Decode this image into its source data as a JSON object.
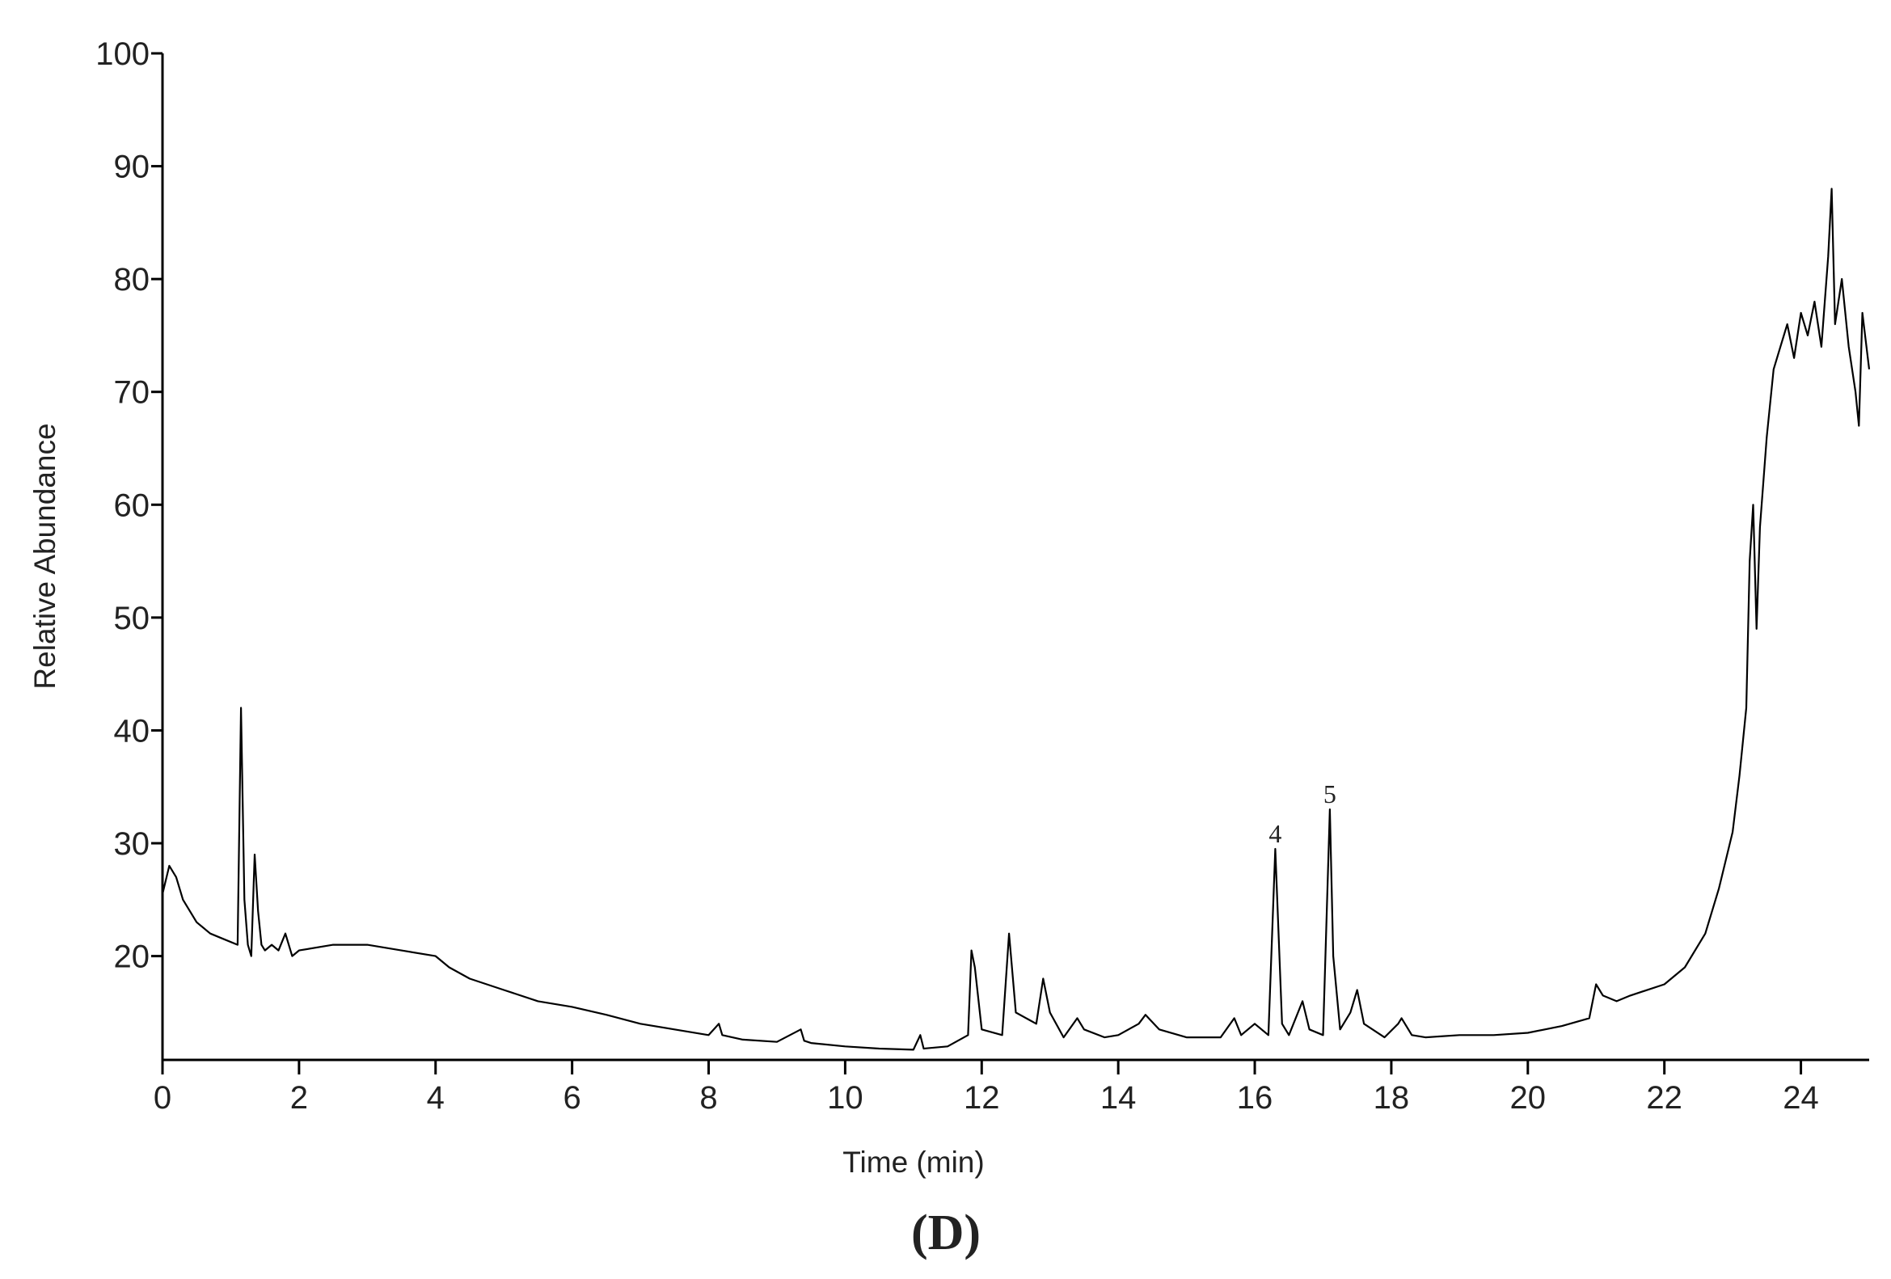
{
  "chart_data": {
    "type": "line",
    "x_label": "Time (min)",
    "y_label": "Relative Abundance",
    "caption": "(D)",
    "xlim": [
      0,
      25
    ],
    "xticks": [
      0,
      2,
      4,
      6,
      8,
      10,
      12,
      14,
      16,
      18,
      20,
      22,
      24
    ],
    "ylim": [
      10.8,
      100
    ],
    "yticks": [
      20,
      30,
      40,
      50,
      60,
      70,
      80,
      90,
      100
    ],
    "color": "#000000",
    "x": [
      0,
      0.1,
      0.2,
      0.3,
      0.5,
      0.7,
      0.9,
      1.1,
      1.15,
      1.2,
      1.25,
      1.3,
      1.35,
      1.4,
      1.45,
      1.5,
      1.6,
      1.7,
      1.8,
      1.9,
      2.0,
      2.5,
      3.0,
      3.5,
      4.0,
      4.2,
      4.5,
      5,
      5.5,
      6,
      6.5,
      7,
      7.5,
      8,
      8.15,
      8.2,
      8.5,
      9,
      9.35,
      9.4,
      9.5,
      10,
      10.5,
      11,
      11.1,
      11.15,
      11.5,
      11.8,
      11.85,
      11.9,
      12.0,
      12.3,
      12.4,
      12.5,
      12.8,
      12.9,
      13.0,
      13.2,
      13.4,
      13.5,
      13.8,
      14.0,
      14.3,
      14.4,
      14.6,
      15,
      15.5,
      15.7,
      15.8,
      16.0,
      16.2,
      16.3,
      16.4,
      16.5,
      16.7,
      16.8,
      17.0,
      17.1,
      17.15,
      17.25,
      17.4,
      17.5,
      17.6,
      17.9,
      18.1,
      18.15,
      18.3,
      18.5,
      19,
      19.5,
      20,
      20.5,
      20.9,
      21.0,
      21.1,
      21.3,
      21.5,
      22,
      22.3,
      22.6,
      22.8,
      23,
      23.1,
      23.2,
      23.25,
      23.3,
      23.35,
      23.4,
      23.5,
      23.6,
      23.7,
      23.8,
      23.9,
      24.0,
      24.1,
      24.2,
      24.3,
      24.4,
      24.45,
      24.5,
      24.6,
      24.7,
      24.8,
      24.85,
      24.9,
      25.0
    ],
    "values": [
      25.5,
      28,
      27,
      25,
      23,
      22,
      21.5,
      21,
      42,
      25,
      21,
      20,
      29,
      24,
      21,
      20.5,
      21,
      20.5,
      22,
      20,
      20.5,
      21,
      21,
      20.5,
      20,
      19,
      18,
      17,
      16,
      15.5,
      14.8,
      14,
      13.5,
      13,
      14,
      13,
      12.6,
      12.4,
      13.5,
      12.5,
      12.3,
      12,
      11.8,
      11.7,
      13,
      11.8,
      12,
      13,
      20.5,
      19,
      13.5,
      13,
      22,
      15,
      14,
      18,
      15,
      12.8,
      14.5,
      13.5,
      12.8,
      13,
      14,
      14.8,
      13.5,
      12.8,
      12.8,
      14.5,
      13,
      14,
      13,
      29.5,
      14,
      13,
      16,
      13.5,
      13,
      33,
      20,
      13.5,
      15,
      17,
      14,
      12.8,
      14,
      14.5,
      13,
      12.8,
      13,
      13,
      13.2,
      13.8,
      14.5,
      17.5,
      16.5,
      16,
      16.5,
      17.5,
      19,
      22,
      26,
      31,
      36,
      42,
      55,
      60,
      49,
      58,
      66,
      72,
      74,
      76,
      73,
      77,
      75,
      78,
      74,
      82,
      88,
      76,
      80,
      74,
      70,
      67,
      77,
      72
    ],
    "annotations": [
      {
        "text": "4",
        "x": 16.3,
        "y": 29.5
      },
      {
        "text": "5",
        "x": 17.1,
        "y": 33
      }
    ]
  }
}
